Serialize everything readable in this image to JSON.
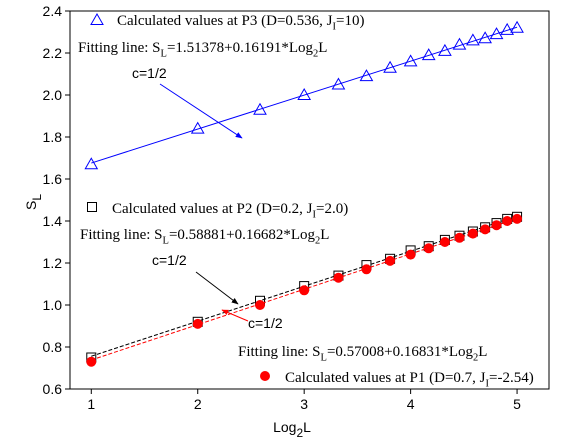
{
  "chart_data": {
    "type": "scatter",
    "x_label": [
      "Log",
      "2",
      "L"
    ],
    "y_label": [
      "S",
      "L"
    ],
    "x": [
      1,
      2,
      2.585,
      3,
      3.322,
      3.585,
      3.807,
      4,
      4.17,
      4.322,
      4.459,
      4.585,
      4.7,
      4.807,
      4.907,
      5
    ],
    "xlim": [
      0.8,
      5.3
    ],
    "ylim": [
      0.6,
      2.4
    ],
    "xticks": [
      1,
      2,
      3,
      4,
      5
    ],
    "yticks": [
      0.6,
      0.8,
      {
        "value": 1,
        "label": "1.0"
      },
      1.2,
      1.4,
      1.6,
      1.8,
      {
        "value": 2,
        "label": "2.0"
      },
      2.2,
      2.4
    ],
    "series": [
      {
        "name": [
          "Calculated values at P3 (D=0.536, J",
          "I",
          "=10)"
        ],
        "color": "#0000ff",
        "marker": "triangle",
        "values": [
          1.67,
          1.84,
          1.93,
          2.0,
          2.05,
          2.09,
          2.13,
          2.16,
          2.19,
          2.21,
          2.24,
          2.26,
          2.27,
          2.29,
          2.31,
          2.32
        ],
        "fit": {
          "x": [
            1,
            5
          ],
          "values": [
            1.676,
            2.323
          ],
          "dashed": false
        },
        "fit_label": [
          "Fitting line: S",
          "L",
          "=1.51378+0.16191*Log",
          "2",
          "L"
        ]
      },
      {
        "name": [
          "Calculated values at P2 (D=0.2, J",
          "I",
          "=2.0)"
        ],
        "color": "#000000",
        "marker": "square",
        "values": [
          0.75,
          0.92,
          1.02,
          1.09,
          1.14,
          1.19,
          1.22,
          1.26,
          1.28,
          1.31,
          1.33,
          1.35,
          1.37,
          1.39,
          1.41,
          1.42
        ],
        "fit": {
          "x": [
            1,
            5
          ],
          "values": [
            0.756,
            1.423
          ],
          "dashed": true
        },
        "fit_label": [
          "Fitting line: S",
          "L",
          "=0.58881+0.16682*Log",
          "2",
          "L"
        ]
      },
      {
        "name": [
          "Calculated values at P1 (D=0.7, J",
          "I",
          "=-2.54)"
        ],
        "color": "#ff0000",
        "marker": "circle",
        "values": [
          0.73,
          0.91,
          1.0,
          1.07,
          1.13,
          1.17,
          1.21,
          1.24,
          1.27,
          1.3,
          1.32,
          1.34,
          1.36,
          1.38,
          1.4,
          1.41
        ],
        "fit": {
          "x": [
            1,
            5
          ],
          "values": [
            0.738,
            1.412
          ],
          "dashed": true
        },
        "fit_label": [
          "Fitting line: S",
          "L",
          "=0.57008+0.16831*Log",
          "2",
          "L"
        ]
      }
    ],
    "annotations": [
      "c=1/2",
      "c=1/2",
      "c=1/2"
    ]
  }
}
